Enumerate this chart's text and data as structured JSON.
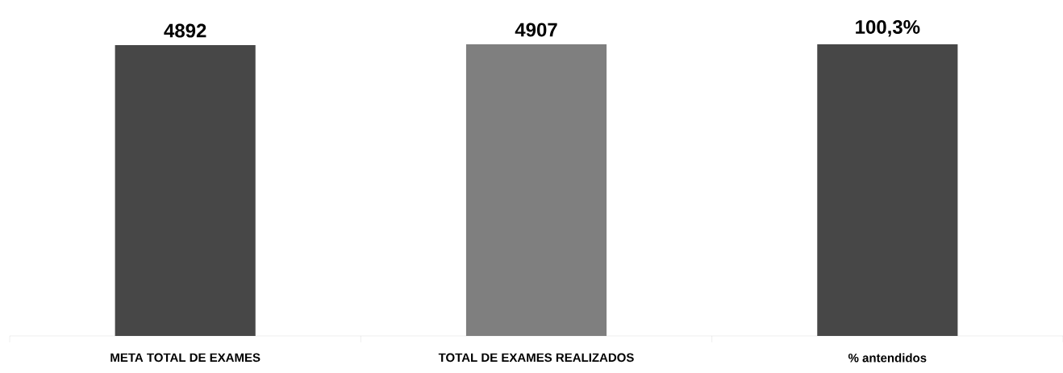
{
  "chart_data": {
    "type": "bar",
    "categories": [
      "META TOTAL DE EXAMES",
      "TOTAL DE EXAMES REALIZADOS",
      "% antendidos"
    ],
    "series": [
      {
        "colors": [
          "#474747",
          "#7f7f7f",
          null
        ],
        "values": [
          4892,
          4907,
          null
        ],
        "value_labels": [
          "4892",
          "4907",
          null
        ]
      },
      {
        "axis": "y2",
        "color": "#474747",
        "values": [
          null,
          null,
          100.3
        ],
        "value_labels": [
          null,
          null,
          "100,3%"
        ]
      }
    ],
    "tick_labels": "x"
  }
}
